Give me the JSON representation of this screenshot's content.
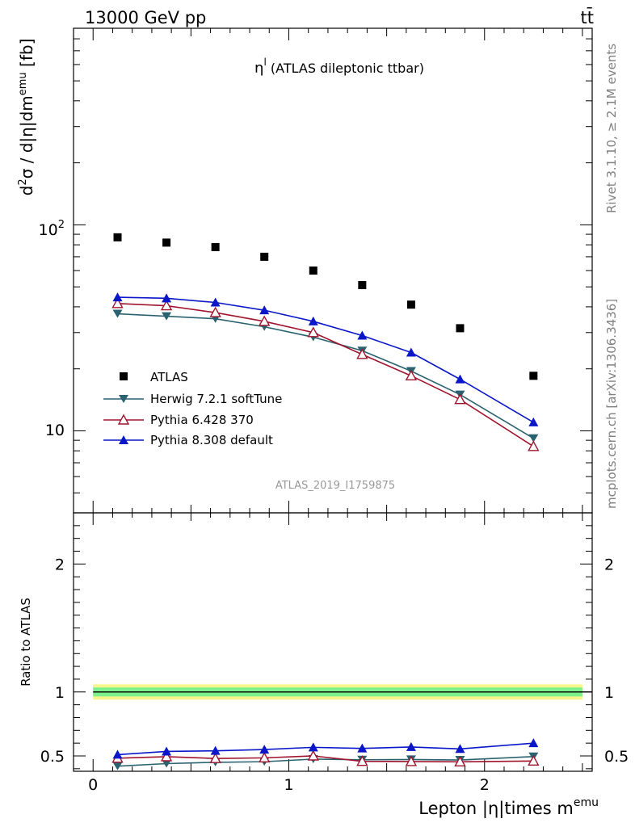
{
  "header": {
    "energy": "13000 GeV pp",
    "process": "tt̄"
  },
  "side_labels": {
    "rivet": "Rivet 3.1.10, ≥ 2.1M events",
    "mcplots": "mcplots.cern.ch [arXiv:1306.3436]"
  },
  "chart_data": [
    {
      "type": "scatter",
      "title": "η^l (ATLAS dileptonic ttbar)",
      "title_main": "η",
      "title_sup": "l",
      "title_rest": " (ATLAS dileptonic ttbar)",
      "analysis_id": "ATLAS_2019_I1759875",
      "ylabel": "d²σ / d|η|dm^emu [fb]",
      "yscale": "log",
      "ylim": [
        4,
        900
      ],
      "xlim": [
        -0.1,
        2.55
      ],
      "ytick_labels": [
        "10",
        "10²"
      ],
      "x": [
        0.125,
        0.375,
        0.625,
        0.875,
        1.125,
        1.375,
        1.625,
        1.875,
        2.25
      ],
      "series": [
        {
          "name": "ATLAS",
          "color": "#000000",
          "marker": "square",
          "line": false,
          "values": [
            87,
            82,
            78,
            70,
            60,
            51,
            41,
            31.5,
            18.5
          ]
        },
        {
          "name": "Herwig 7.2.1 softTune",
          "color": "#2a6270",
          "marker": "triangle-down",
          "line": true,
          "values": [
            37,
            36,
            35,
            32,
            28.5,
            24.5,
            19.5,
            15,
            9.2
          ]
        },
        {
          "name": "Pythia 6.428 370",
          "color": "#a0142d",
          "marker": "triangle-up-open",
          "line": true,
          "values": [
            41.5,
            40.5,
            37.5,
            34,
            30,
            23.5,
            18.5,
            14.2,
            8.4
          ]
        },
        {
          "name": "Pythia 8.308 default",
          "color": "#0a17c8",
          "marker": "triangle-up",
          "line": true,
          "values": [
            44.5,
            44,
            42,
            38.5,
            34,
            29,
            24,
            17.8,
            11
          ]
        }
      ],
      "legend": [
        "ATLAS",
        "Herwig 7.2.1 softTune",
        "Pythia 6.428 370",
        "Pythia 8.308 default"
      ],
      "legend_position": "bottom-left"
    },
    {
      "type": "line",
      "ylabel": "Ratio to ATLAS",
      "xlabel": "Lepton |η|times m^emu",
      "xlabel_main": "Lepton |η|times m",
      "xlabel_sup": "emu",
      "ylim": [
        0.38,
        2.4
      ],
      "xlim": [
        -0.1,
        2.55
      ],
      "xtick_labels": [
        "0",
        "1",
        "2"
      ],
      "ytick_labels": [
        "0.5",
        "1",
        "2"
      ],
      "x": [
        0.125,
        0.375,
        0.625,
        0.875,
        1.125,
        1.375,
        1.625,
        1.875,
        2.25
      ],
      "series": [
        {
          "name": "Herwig 7.2.1 softTune",
          "color": "#2a6270",
          "marker": "triangle-down",
          "values": [
            0.42,
            0.44,
            0.45,
            0.455,
            0.475,
            0.47,
            0.472,
            0.468,
            0.495
          ]
        },
        {
          "name": "Pythia 6.428 370",
          "color": "#a0142d",
          "marker": "triangle-up-open",
          "values": [
            0.482,
            0.494,
            0.48,
            0.485,
            0.5,
            0.458,
            0.456,
            0.454,
            0.46
          ]
        },
        {
          "name": "Pythia 8.308 default",
          "color": "#0a17c8",
          "marker": "triangle-up",
          "values": [
            0.51,
            0.535,
            0.54,
            0.55,
            0.567,
            0.559,
            0.57,
            0.555,
            0.6
          ]
        }
      ],
      "reference_value": 1,
      "band_inner_color": "#7cf08a",
      "band_outer_color": "#f6f68a"
    }
  ]
}
